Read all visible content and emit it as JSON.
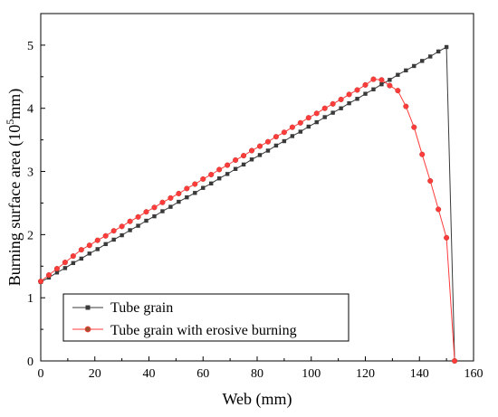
{
  "chart_data": {
    "type": "line",
    "title": "",
    "xlabel": "Web (mm)",
    "ylabel_prefix": "Burning surface area (10",
    "ylabel_exp": "5",
    "ylabel_suffix": "mm)",
    "xlim": [
      0,
      160
    ],
    "ylim": [
      0,
      5.5
    ],
    "xticks": [
      "0",
      "20",
      "40",
      "60",
      "80",
      "100",
      "120",
      "140",
      "160"
    ],
    "yticks": [
      "0",
      "1",
      "2",
      "3",
      "4",
      "5"
    ],
    "grid": false,
    "legend_position": "bottom-left",
    "series": [
      {
        "name": "Tube grain",
        "color": "#3a3a3a",
        "marker": "square",
        "x": [
          0,
          3,
          6,
          9,
          12,
          15,
          18,
          21,
          24,
          27,
          30,
          33,
          36,
          39,
          42,
          45,
          48,
          51,
          54,
          57,
          60,
          63,
          66,
          69,
          72,
          75,
          78,
          81,
          84,
          87,
          90,
          93,
          96,
          99,
          102,
          105,
          108,
          111,
          114,
          117,
          120,
          123,
          126,
          129,
          132,
          135,
          138,
          141,
          144,
          147,
          150,
          153
        ],
        "y": [
          1.25,
          1.32,
          1.4,
          1.47,
          1.55,
          1.62,
          1.7,
          1.77,
          1.85,
          1.92,
          1.99,
          2.07,
          2.14,
          2.22,
          2.29,
          2.37,
          2.44,
          2.52,
          2.59,
          2.66,
          2.74,
          2.81,
          2.89,
          2.96,
          3.04,
          3.11,
          3.19,
          3.26,
          3.33,
          3.41,
          3.48,
          3.56,
          3.63,
          3.71,
          3.78,
          3.86,
          3.93,
          4.0,
          4.08,
          4.15,
          4.23,
          4.3,
          4.38,
          4.45,
          4.53,
          4.6,
          4.67,
          4.75,
          4.82,
          4.9,
          4.97,
          0
        ]
      },
      {
        "name": "Tube grain with erosive burning",
        "color": "#ff3b3b",
        "marker": "circle",
        "x": [
          0,
          3,
          6,
          9,
          12,
          15,
          18,
          21,
          24,
          27,
          30,
          33,
          36,
          39,
          42,
          45,
          48,
          51,
          54,
          57,
          60,
          63,
          66,
          69,
          72,
          75,
          78,
          81,
          84,
          87,
          90,
          93,
          96,
          99,
          102,
          105,
          108,
          111,
          114,
          117,
          120,
          123,
          126,
          129,
          132,
          135,
          138,
          141,
          144,
          147,
          150,
          153
        ],
        "y": [
          1.26,
          1.36,
          1.46,
          1.56,
          1.66,
          1.76,
          1.83,
          1.91,
          1.98,
          2.06,
          2.13,
          2.21,
          2.28,
          2.36,
          2.43,
          2.51,
          2.58,
          2.65,
          2.73,
          2.8,
          2.88,
          2.95,
          3.03,
          3.1,
          3.18,
          3.25,
          3.33,
          3.4,
          3.47,
          3.55,
          3.62,
          3.7,
          3.77,
          3.85,
          3.92,
          4.0,
          4.07,
          4.14,
          4.22,
          4.29,
          4.37,
          4.46,
          4.45,
          4.36,
          4.28,
          4.03,
          3.7,
          3.27,
          2.85,
          2.4,
          1.95,
          0
        ]
      }
    ]
  }
}
